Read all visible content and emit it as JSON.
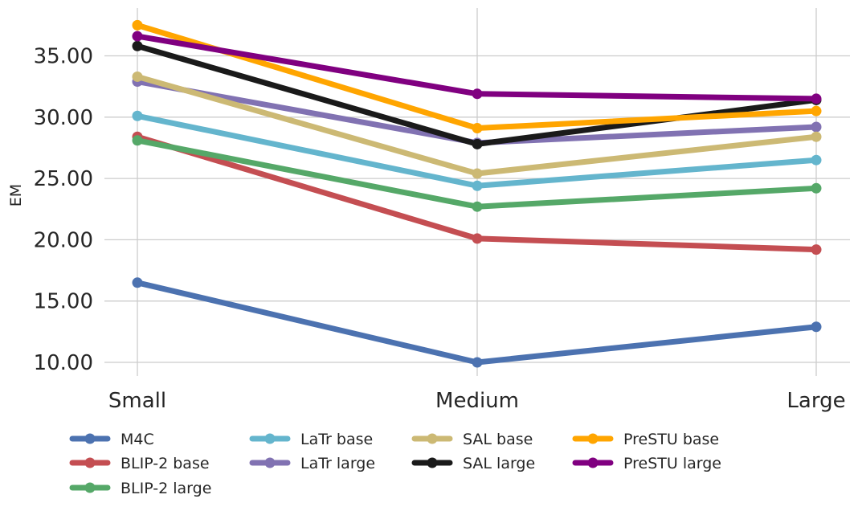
{
  "chart_data": {
    "type": "line",
    "categories": [
      "Small",
      "Medium",
      "Large"
    ],
    "ylabel": "EM",
    "xlabel": "",
    "ylim": [
      9.0,
      38.5
    ],
    "yticks": [
      "10.00",
      "15.00",
      "20.00",
      "25.00",
      "30.00",
      "35.00"
    ],
    "grid": true,
    "legend_position": "bottom",
    "series": [
      {
        "name": "M4C",
        "color": "#4c72b0",
        "values": [
          16.5,
          10.0,
          12.9
        ]
      },
      {
        "name": "BLIP-2 base",
        "color": "#c44e52",
        "values": [
          28.4,
          20.1,
          19.2
        ]
      },
      {
        "name": "BLIP-2 large",
        "color": "#55a868",
        "values": [
          28.1,
          22.7,
          24.2
        ]
      },
      {
        "name": "LaTr base",
        "color": "#64b5cd",
        "values": [
          30.1,
          24.4,
          26.5
        ]
      },
      {
        "name": "LaTr large",
        "color": "#8172b2",
        "values": [
          32.9,
          27.9,
          29.2
        ]
      },
      {
        "name": "SAL base",
        "color": "#ccb974",
        "values": [
          33.3,
          25.4,
          28.4
        ]
      },
      {
        "name": "SAL large",
        "color": "#1a1a1a",
        "values": [
          35.8,
          27.8,
          31.4
        ]
      },
      {
        "name": "PreSTU base",
        "color": "#ffa500",
        "values": [
          37.5,
          29.1,
          30.5
        ]
      },
      {
        "name": "PreSTU large",
        "color": "#800080",
        "values": [
          36.6,
          31.9,
          31.5
        ]
      }
    ]
  }
}
